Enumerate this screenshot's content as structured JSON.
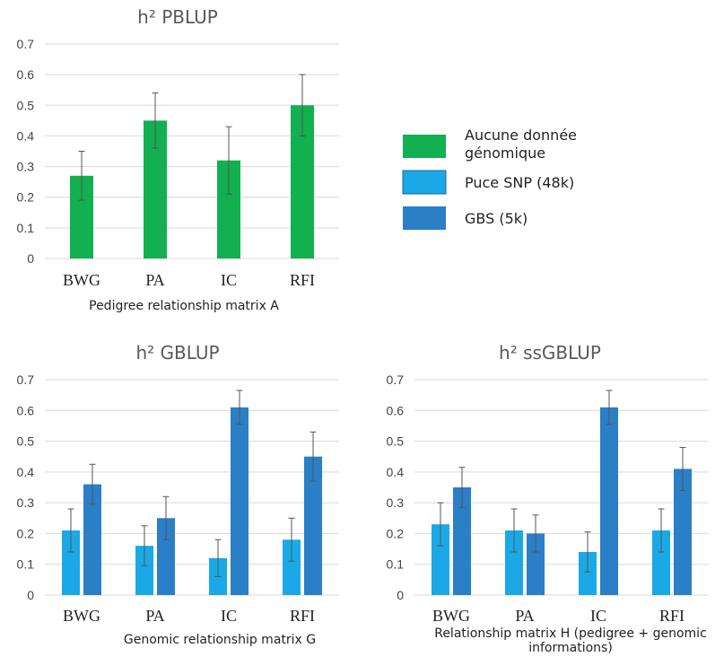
{
  "colors": {
    "green": "#12b050",
    "light_blue": "#1aa9e6",
    "dark_blue": "#2a7fc6",
    "error_bar": "#555555"
  },
  "legend": [
    {
      "label": "Aucune donnée",
      "label2": "génomique",
      "color": "#12b050"
    },
    {
      "label": "Puce SNP (48k)",
      "color": "#1aa9e6"
    },
    {
      "label": "GBS (5k)",
      "color": "#2a7fc6"
    }
  ],
  "chart_data": [
    {
      "type": "bar",
      "title": "h² PBLUP",
      "xlabel": "Pedigree relationship matrix A",
      "xlabel2": "",
      "ylim": [
        0,
        0.7
      ],
      "yticks": [
        "0",
        "0.1",
        "0.2",
        "0.3",
        "0.4",
        "0.5",
        "0.6",
        "0.7"
      ],
      "categories": [
        "BWG",
        "PA",
        "IC",
        "RFI"
      ],
      "series": [
        {
          "name": "Aucune donnée génomique",
          "color": "#12b050",
          "values": [
            0.27,
            0.45,
            0.32,
            0.5
          ],
          "err_low": [
            0.19,
            0.36,
            0.21,
            0.4
          ],
          "err_high": [
            0.35,
            0.54,
            0.43,
            0.6
          ]
        }
      ]
    },
    {
      "type": "bar",
      "title": "h² GBLUP",
      "xlabel": "Genomic relationship matrix G",
      "xlabel2": "",
      "ylim": [
        0,
        0.7
      ],
      "yticks": [
        "0",
        "0.1",
        "0.2",
        "0.3",
        "0.4",
        "0.5",
        "0.6",
        "0.7"
      ],
      "categories": [
        "BWG",
        "PA",
        "IC",
        "RFI"
      ],
      "series": [
        {
          "name": "Puce SNP (48k)",
          "color": "#1aa9e6",
          "values": [
            0.21,
            0.16,
            0.12,
            0.18
          ],
          "err_low": [
            0.14,
            0.095,
            0.06,
            0.11
          ],
          "err_high": [
            0.28,
            0.225,
            0.18,
            0.25
          ]
        },
        {
          "name": "GBS (5k)",
          "color": "#2a7fc6",
          "values": [
            0.36,
            0.25,
            0.61,
            0.45
          ],
          "err_low": [
            0.295,
            0.18,
            0.555,
            0.37
          ],
          "err_high": [
            0.425,
            0.32,
            0.665,
            0.53
          ]
        }
      ]
    },
    {
      "type": "bar",
      "title": "h² ssGBLUP",
      "xlabel": "Relationship matrix H (pedigree + genomic",
      "xlabel2": "informations)",
      "ylim": [
        0,
        0.7
      ],
      "yticks": [
        "0",
        "0.1",
        "0.2",
        "0.3",
        "0.4",
        "0.5",
        "0.6",
        "0.7"
      ],
      "categories": [
        "BWG",
        "PA",
        "IC",
        "RFI"
      ],
      "series": [
        {
          "name": "Puce SNP (48k)",
          "color": "#1aa9e6",
          "values": [
            0.23,
            0.21,
            0.14,
            0.21
          ],
          "err_low": [
            0.16,
            0.14,
            0.075,
            0.14
          ],
          "err_high": [
            0.3,
            0.28,
            0.205,
            0.28
          ]
        },
        {
          "name": "GBS (5k)",
          "color": "#2a7fc6",
          "values": [
            0.35,
            0.2,
            0.61,
            0.41
          ],
          "err_low": [
            0.285,
            0.14,
            0.555,
            0.34
          ],
          "err_high": [
            0.415,
            0.26,
            0.665,
            0.48
          ]
        }
      ]
    }
  ]
}
